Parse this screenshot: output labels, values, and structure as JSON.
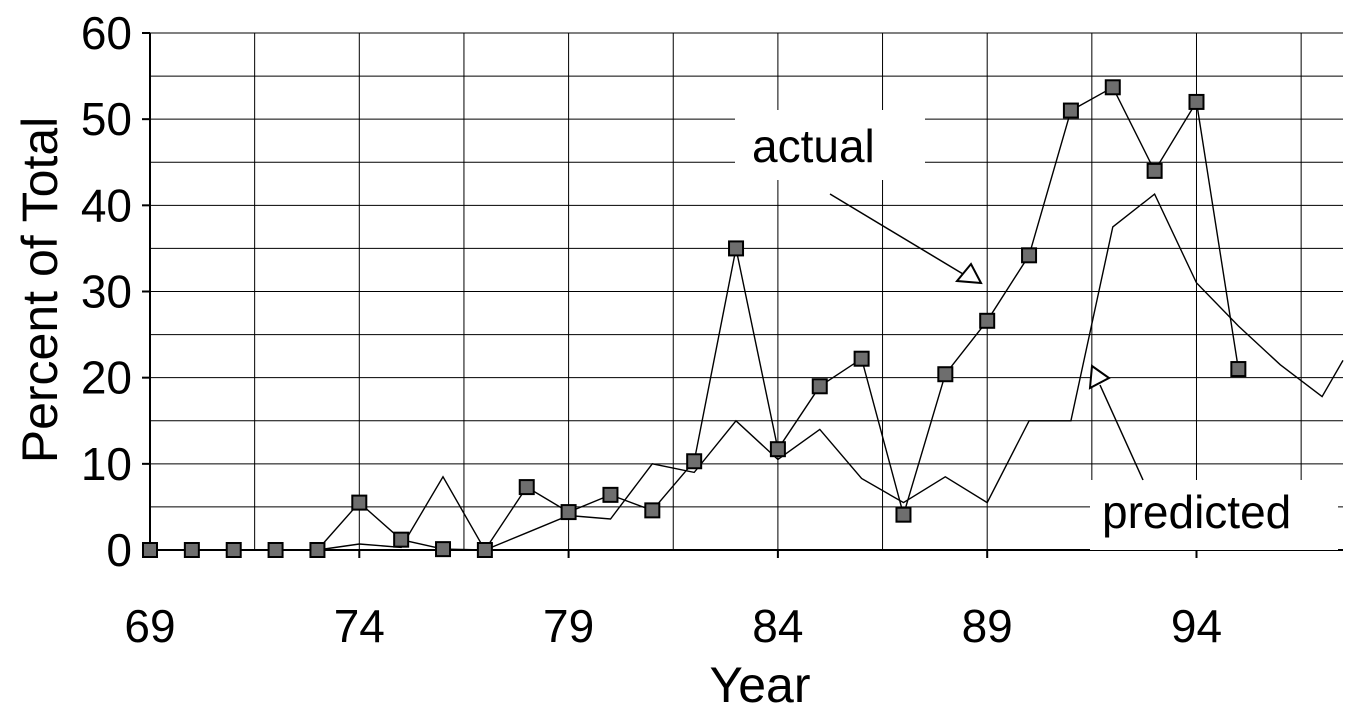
{
  "chart_data": {
    "type": "line",
    "title": "",
    "xlabel": "Year",
    "ylabel": "Percent of Total",
    "xlim": [
      69,
      97.5
    ],
    "ylim": [
      0,
      60
    ],
    "xticks": [
      "69",
      "74",
      "79",
      "84",
      "89",
      "94"
    ],
    "xtick_values": [
      69,
      74,
      79,
      84,
      89,
      94
    ],
    "yticks": [
      "0",
      "10",
      "20",
      "30",
      "40",
      "50",
      "60"
    ],
    "ytick_values": [
      0,
      10,
      20,
      30,
      40,
      50,
      60
    ],
    "grid": true,
    "series": [
      {
        "name": "actual",
        "marker": "square",
        "x": [
          69,
          70,
          71,
          72,
          73,
          74,
          75,
          76,
          77,
          78,
          79,
          80,
          81,
          82,
          83,
          84,
          85,
          86,
          87,
          88,
          89,
          90,
          91,
          92,
          93,
          94,
          95
        ],
        "values": [
          0,
          0,
          0,
          0,
          0,
          5.5,
          1.2,
          0.1,
          0,
          7.3,
          4.4,
          6.4,
          4.6,
          10.3,
          35,
          11.7,
          19,
          22.2,
          4.1,
          20.4,
          26.6,
          34.2,
          51,
          53.7,
          44,
          52,
          21
        ]
      },
      {
        "name": "predicted",
        "marker": "none",
        "x": [
          73,
          74,
          75,
          76,
          77,
          78,
          79,
          80,
          81,
          82,
          83,
          84,
          85,
          86,
          87,
          88,
          89,
          90,
          91,
          92,
          93,
          94,
          95,
          96,
          97,
          97.5
        ],
        "values": [
          0,
          0.7,
          0.3,
          8.5,
          0,
          2,
          4,
          3.6,
          10,
          9,
          15,
          10.5,
          14,
          8.3,
          5.5,
          8.5,
          5.5,
          15,
          15,
          37.5,
          41.3,
          31,
          26,
          21.5,
          17.8,
          22
        ]
      }
    ],
    "annotations": [
      {
        "text": "actual",
        "points_to": "actual"
      },
      {
        "text": "predicted",
        "points_to": "predicted"
      }
    ]
  }
}
